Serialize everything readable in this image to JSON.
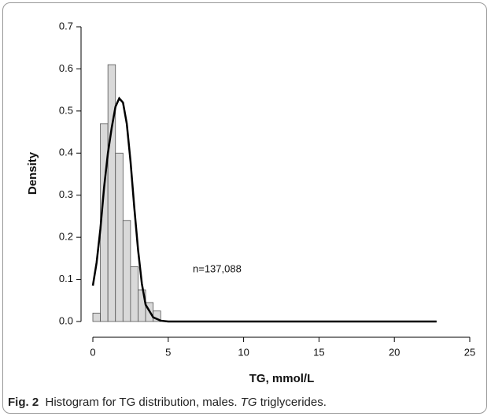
{
  "chart_data": {
    "type": "histogram",
    "xlabel": "TG, mmol/L",
    "ylabel": "Density",
    "annotation": "n=137,088",
    "bins": [
      0,
      0.5,
      1,
      1.5,
      2,
      2.5,
      3,
      3.5,
      4,
      4.5
    ],
    "values": [
      0.02,
      0.47,
      0.61,
      0.4,
      0.24,
      0.13,
      0.075,
      0.045,
      0.025
    ],
    "color": "#d9d9d9",
    "curve": {
      "color": "#000000",
      "x": [
        0,
        0.25,
        0.5,
        0.75,
        1,
        1.25,
        1.5,
        1.75,
        2,
        2.25,
        2.5,
        2.75,
        3,
        3.25,
        3.5,
        4,
        4.5,
        5,
        22.8
      ],
      "y": [
        0.085,
        0.14,
        0.22,
        0.32,
        0.4,
        0.46,
        0.51,
        0.53,
        0.52,
        0.47,
        0.38,
        0.27,
        0.17,
        0.09,
        0.04,
        0.01,
        0.002,
        0,
        0
      ]
    },
    "xlim": [
      0,
      25
    ],
    "xticks": [
      0,
      5,
      10,
      15,
      20,
      25
    ],
    "ylim": [
      0,
      0.7
    ],
    "yticks": [
      {
        "value": 0,
        "label": "0.0"
      },
      0.1,
      0.2,
      0.3,
      0.4,
      0.5,
      0.6,
      0.7
    ]
  },
  "caption": {
    "label": "Fig. 2",
    "text": "Histogram for TG distribution, males.",
    "abbr": "TG",
    "rest": "triglycerides."
  }
}
